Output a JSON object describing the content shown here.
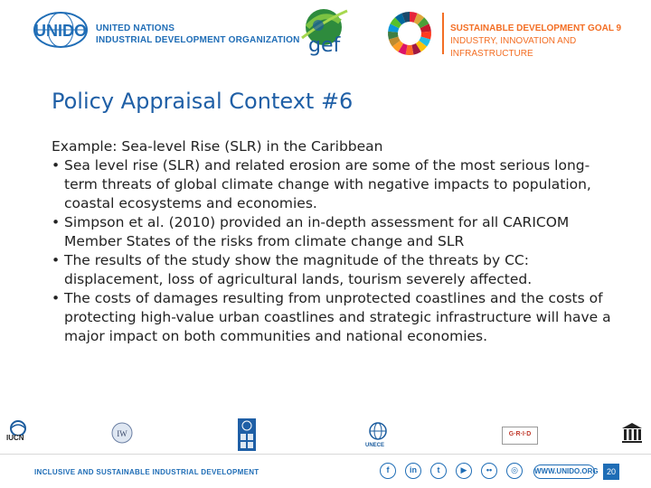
{
  "header": {
    "unido_logo_text": "UNIDO",
    "unido_name_line1": "UNITED NATIONS",
    "unido_name_line2": "INDUSTRIAL DEVELOPMENT ORGANIZATION",
    "gef_text": "gef",
    "sdg_title": "SUSTAINABLE DEVELOPMENT GOAL 9",
    "sdg_subtitle": "INDUSTRY, INNOVATION AND INFRASTRUCTURE"
  },
  "slide": {
    "title": "Policy Appraisal Context #6",
    "example": "Example: Sea-level Rise (SLR) in the Caribbean",
    "bullet_char": "•",
    "bullets": [
      "Sea level rise (SLR) and related erosion are some of the most serious long-term threats of global climate change with negative impacts to population, coastal ecosystems and economies.",
      "Simpson et al. (2010) provided an in-depth assessment for all CARICOM Member States of the risks from climate change and SLR",
      "The results of the study show the magnitude of the threats by CC: displacement, loss of agricultural lands, tourism severely affected.",
      "The costs of damages resulting from unprotected coastlines and the costs of protecting high-value urban coastlines and strategic infrastructure will have a major impact on both communities and national economies."
    ]
  },
  "partners": {
    "iucn": "IUCN",
    "unece": "UNECE",
    "grid": "G·R·I·D"
  },
  "footer": {
    "tagline": "INCLUSIVE AND SUSTAINABLE INDUSTRIAL DEVELOPMENT",
    "social_icons": [
      "f",
      "in",
      "t",
      "▶",
      "••",
      "◎"
    ],
    "url": "WWW.UNIDO.ORG",
    "page_number": "20"
  },
  "colors": {
    "unido_blue": "#1f6db6",
    "sdg_orange": "#f36e24",
    "title_blue": "#1f5fa6"
  }
}
